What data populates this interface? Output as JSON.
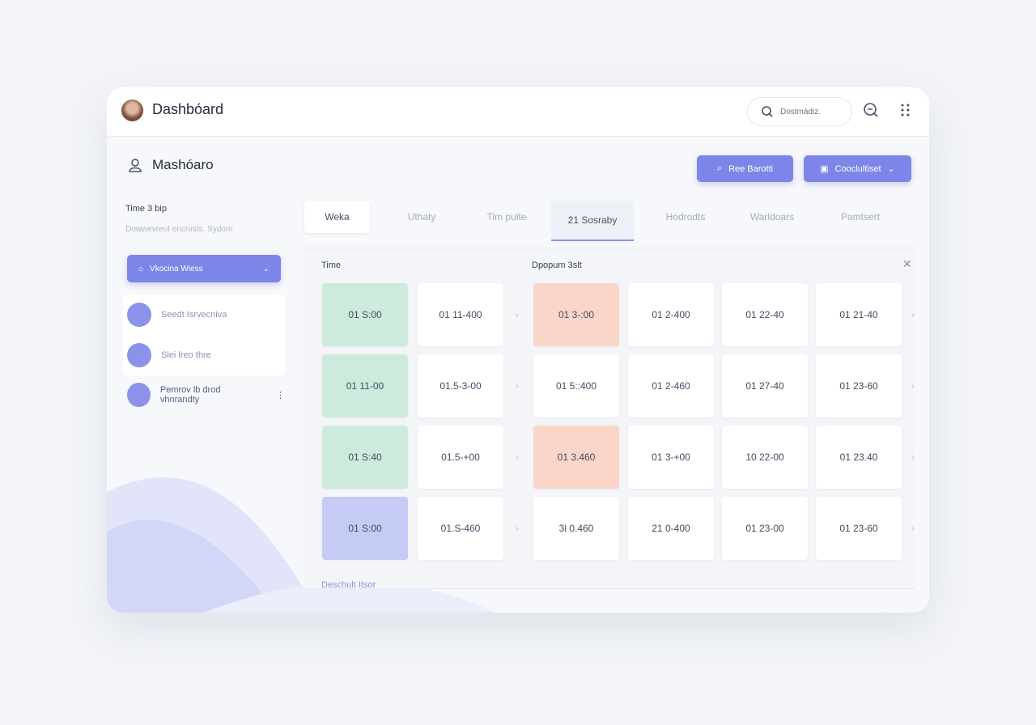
{
  "header": {
    "title": "Dashbóard",
    "search": "Dostmádiz."
  },
  "section": {
    "title": "Mashóaro",
    "buttons": [
      "Ree Barotti",
      "Cooclultiset"
    ]
  },
  "sidebar": {
    "title": "Time 3 bip",
    "subtitle": "Dowwevreut encrusts. Sydom",
    "dropdown": "Vkocina Wiess",
    "items": [
      "Seedt Isrvecniva",
      "Slei lreo thre",
      "Pemrov lb drod vhnrandty"
    ]
  },
  "tabs": {
    "items": [
      "Weka",
      "Uthaty",
      "Tim pulte",
      "21 Sosraby",
      "Hodrodts",
      "Warldoars",
      "Pamtsert"
    ]
  },
  "table": {
    "left_title": "Time",
    "right_title": "Dpopum 3slt",
    "rows": [
      [
        {
          "text": "01 S:00",
          "color": "#cdebdc"
        },
        {
          "text": "01 11-400"
        },
        {
          "text": "01 3-:00",
          "color": "#fbd6c8"
        },
        {
          "text": "01 2-400"
        },
        {
          "text": "01 22-40"
        },
        {
          "text": "01 21-40"
        }
      ],
      [
        {
          "text": "01 11-00",
          "color": "#cdebdc"
        },
        {
          "text": "01.5-3-00"
        },
        {
          "text": "01 5::400"
        },
        {
          "text": "01 2-460"
        },
        {
          "text": "01 27-40"
        },
        {
          "text": "01 23-60"
        }
      ],
      [
        {
          "text": "01 S:40",
          "color": "#cdebdc"
        },
        {
          "text": "01.5-+00"
        },
        {
          "text": "01 3.460",
          "color": "#fbd6c8"
        },
        {
          "text": "01 3-+00"
        },
        {
          "text": "10 22-00"
        },
        {
          "text": "01 23.40"
        }
      ],
      [
        {
          "text": "01 S:00",
          "color": "#c5cbf4"
        },
        {
          "text": "01.S-460"
        },
        {
          "text": "3l 0.460"
        },
        {
          "text": "21 0-400"
        },
        {
          "text": "01 23-00"
        },
        {
          "text": "01 23-60"
        }
      ]
    ],
    "footer": "Deschult Itsor"
  }
}
